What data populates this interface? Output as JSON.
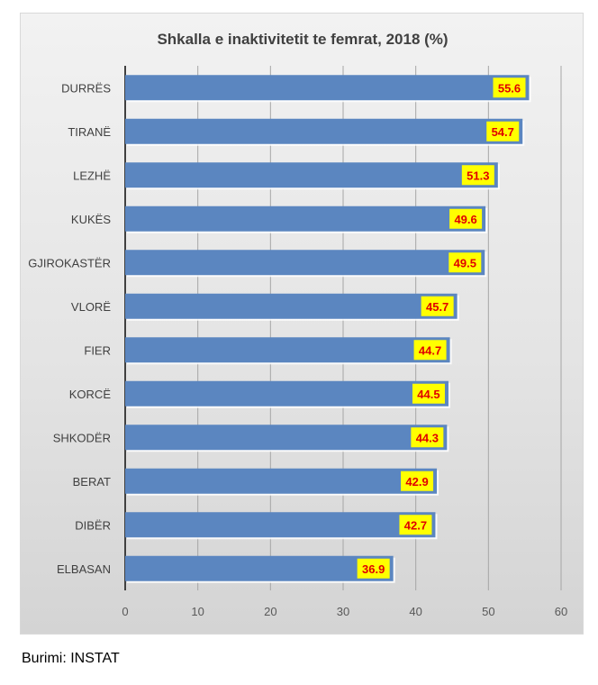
{
  "chart_data": {
    "type": "bar",
    "orientation": "horizontal",
    "title": "Shkalla e inaktivitetit te femrat, 2018 (%)",
    "categories": [
      "DURRËS",
      "TIRANË",
      "LEZHË",
      "KUKËS",
      "GJIROKASTËR",
      "VLORË",
      "FIER",
      "KORCË",
      "SHKODËR",
      "BERAT",
      "DIBËR",
      "ELBASAN"
    ],
    "values": [
      55.6,
      54.7,
      51.3,
      49.6,
      49.5,
      45.7,
      44.7,
      44.5,
      44.3,
      42.9,
      42.7,
      36.9
    ],
    "xlim": [
      0,
      60
    ],
    "xticks": [
      0,
      10,
      20,
      30,
      40,
      50,
      60
    ],
    "grid": "vertical",
    "legend": "none",
    "bar_color": "#5b86c0",
    "label_bg_color": "#ffff00",
    "label_text_color": "#e00000"
  },
  "footer": {
    "source": "Burimi: INSTAT"
  }
}
